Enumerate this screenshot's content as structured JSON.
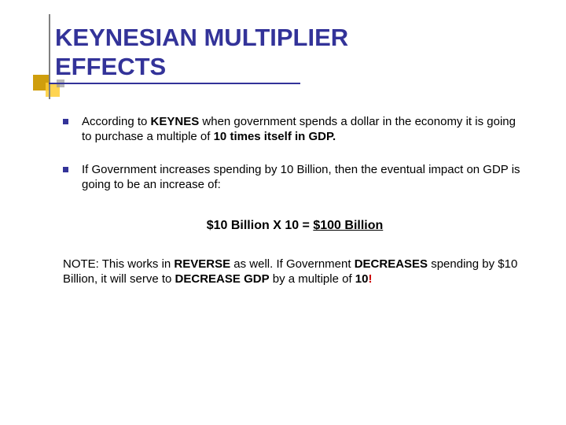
{
  "theme": {
    "title_color": "#333399",
    "underline_color": "#333399",
    "vline_color": "#808080",
    "accent1_color": "#cc9900",
    "accent2_color": "#ffcc33",
    "accent3_color": "#999999",
    "bullet_color": "#333399",
    "bg_color": "#ffffff",
    "title_fontsize": 31,
    "body_fontsize": 15,
    "equation_fontsize": 16
  },
  "title_line1": "KEYNESIAN MULTIPLIER",
  "title_line2": "EFFECTS",
  "bullet1_pre": "According to ",
  "bullet1_b1": "KEYNES",
  "bullet1_mid": " when government spends a dollar in the economy it is going to purchase a multiple of ",
  "bullet1_b2": "10 times itself in GDP.",
  "bullet2": "If Government increases spending by 10 Billion, then the eventual impact on GDP is going to be an increase of:",
  "equation_lhs": "$10 Billion X ",
  "equation_multiplier": "10",
  "equation_eq": " = ",
  "equation_result": "$100 Billion",
  "note_pre": "NOTE: This works in ",
  "note_b1": "REVERSE",
  "note_mid1": " as well.  If Government ",
  "note_b2": "DECREASES",
  "note_mid2": " spending by $10 Billion, it will serve to ",
  "note_b3": "DECREASE GDP",
  "note_mid3": " by a multiple of ",
  "note_b4": "10",
  "note_excl": "!"
}
